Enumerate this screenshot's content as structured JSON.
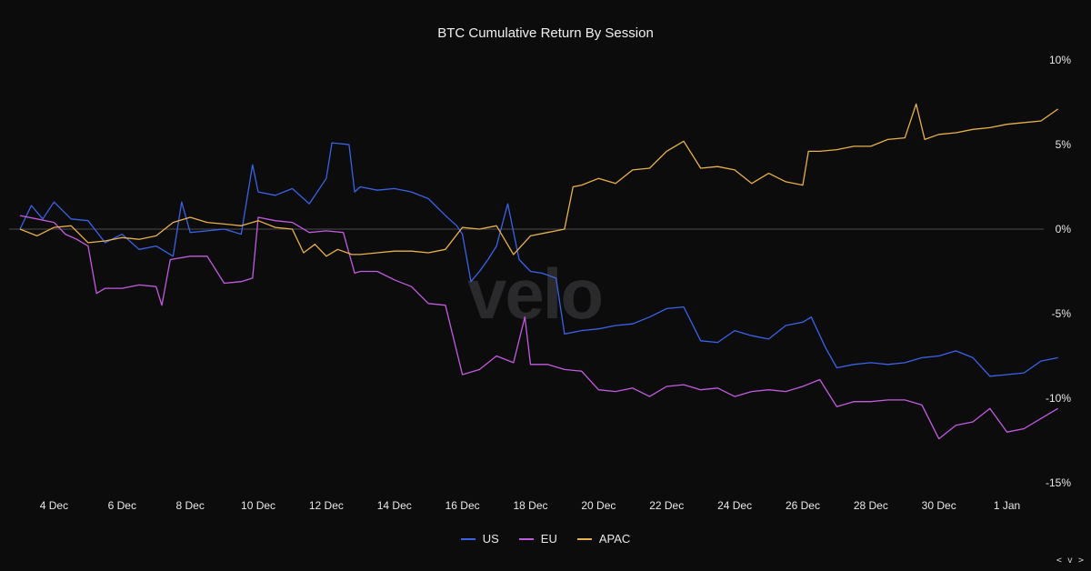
{
  "chart_data": {
    "type": "line",
    "title": "BTC Cumulative Return By Session",
    "xlabel": "",
    "ylabel": "",
    "x_start": "2023-12-03",
    "x_end": "2024-01-02",
    "ylim": [
      -15,
      10
    ],
    "y_ticks": [
      10,
      5,
      0,
      -5,
      -10,
      -15
    ],
    "y_tick_labels": [
      "10%",
      "5%",
      "0%",
      "-5%",
      "-10%",
      "-15%"
    ],
    "x_tick_labels": [
      "4 Dec",
      "6 Dec",
      "8 Dec",
      "10 Dec",
      "12 Dec",
      "14 Dec",
      "16 Dec",
      "18 Dec",
      "20 Dec",
      "22 Dec",
      "24 Dec",
      "26 Dec",
      "28 Dec",
      "30 Dec",
      "1 Jan"
    ],
    "x_tick_dates": [
      "2023-12-04",
      "2023-12-06",
      "2023-12-08",
      "2023-12-10",
      "2023-12-12",
      "2023-12-14",
      "2023-12-16",
      "2023-12-18",
      "2023-12-20",
      "2023-12-22",
      "2023-12-24",
      "2023-12-26",
      "2023-12-28",
      "2023-12-30",
      "2024-01-01"
    ],
    "zero_line": true,
    "legend_position": "bottom-center",
    "series": [
      {
        "name": "US",
        "color": "#3a63e6",
        "points": [
          [
            "2023-12-03",
            0.0
          ],
          [
            "2023-12-03 08:00",
            1.4
          ],
          [
            "2023-12-03 16:00",
            0.6
          ],
          [
            "2023-12-04",
            1.6
          ],
          [
            "2023-12-04 12:00",
            0.6
          ],
          [
            "2023-12-05",
            0.5
          ],
          [
            "2023-12-05 12:00",
            -0.8
          ],
          [
            "2023-12-06",
            -0.3
          ],
          [
            "2023-12-06 12:00",
            -1.2
          ],
          [
            "2023-12-07",
            -1.0
          ],
          [
            "2023-12-07 12:00",
            -1.6
          ],
          [
            "2023-12-07 18:00",
            1.6
          ],
          [
            "2023-12-08",
            -0.2
          ],
          [
            "2023-12-08 12:00",
            -0.1
          ],
          [
            "2023-12-09",
            0.0
          ],
          [
            "2023-12-09 12:00",
            -0.3
          ],
          [
            "2023-12-09 20:00",
            3.8
          ],
          [
            "2023-12-10",
            2.2
          ],
          [
            "2023-12-10 12:00",
            2.0
          ],
          [
            "2023-12-11",
            2.4
          ],
          [
            "2023-12-11 12:00",
            1.5
          ],
          [
            "2023-12-12",
            3.0
          ],
          [
            "2023-12-12 04:00",
            5.1
          ],
          [
            "2023-12-12 16:00",
            5.0
          ],
          [
            "2023-12-12 20:00",
            2.2
          ],
          [
            "2023-12-13",
            2.5
          ],
          [
            "2023-12-13 12:00",
            2.3
          ],
          [
            "2023-12-14",
            2.4
          ],
          [
            "2023-12-14 12:00",
            2.2
          ],
          [
            "2023-12-15",
            1.8
          ],
          [
            "2023-12-15 12:00",
            0.8
          ],
          [
            "2023-12-15 20:00",
            0.2
          ],
          [
            "2023-12-16",
            -0.3
          ],
          [
            "2023-12-16 06:00",
            -3.1
          ],
          [
            "2023-12-16 12:00",
            -2.5
          ],
          [
            "2023-12-16 18:00",
            -1.8
          ],
          [
            "2023-12-17",
            -1.0
          ],
          [
            "2023-12-17 08:00",
            1.5
          ],
          [
            "2023-12-17 16:00",
            -1.8
          ],
          [
            "2023-12-18",
            -2.5
          ],
          [
            "2023-12-18 08:00",
            -2.6
          ],
          [
            "2023-12-18 18:00",
            -2.9
          ],
          [
            "2023-12-19",
            -6.2
          ],
          [
            "2023-12-19 12:00",
            -6.0
          ],
          [
            "2023-12-20",
            -5.9
          ],
          [
            "2023-12-20 12:00",
            -5.7
          ],
          [
            "2023-12-21",
            -5.6
          ],
          [
            "2023-12-21 12:00",
            -5.2
          ],
          [
            "2023-12-22",
            -4.7
          ],
          [
            "2023-12-22 12:00",
            -4.6
          ],
          [
            "2023-12-23",
            -6.6
          ],
          [
            "2023-12-23 12:00",
            -6.7
          ],
          [
            "2023-12-24",
            -6.0
          ],
          [
            "2023-12-24 12:00",
            -6.3
          ],
          [
            "2023-12-25",
            -6.5
          ],
          [
            "2023-12-25 12:00",
            -5.7
          ],
          [
            "2023-12-26",
            -5.5
          ],
          [
            "2023-12-26 06:00",
            -5.2
          ],
          [
            "2023-12-26 16:00",
            -7.0
          ],
          [
            "2023-12-27",
            -8.2
          ],
          [
            "2023-12-27 12:00",
            -8.0
          ],
          [
            "2023-12-28",
            -7.9
          ],
          [
            "2023-12-28 12:00",
            -8.0
          ],
          [
            "2023-12-29",
            -7.9
          ],
          [
            "2023-12-29 12:00",
            -7.6
          ],
          [
            "2023-12-30",
            -7.5
          ],
          [
            "2023-12-30 12:00",
            -7.2
          ],
          [
            "2023-12-31",
            -7.6
          ],
          [
            "2023-12-31 12:00",
            -8.7
          ],
          [
            "2024-01-01",
            -8.6
          ],
          [
            "2024-01-01 12:00",
            -8.5
          ],
          [
            "2024-01-02",
            -7.8
          ],
          [
            "2024-01-02 12:00",
            -7.6
          ]
        ]
      },
      {
        "name": "EU",
        "color": "#c35be0",
        "points": [
          [
            "2023-12-03",
            0.8
          ],
          [
            "2023-12-03 12:00",
            0.6
          ],
          [
            "2023-12-04",
            0.4
          ],
          [
            "2023-12-04 08:00",
            -0.3
          ],
          [
            "2023-12-04 16:00",
            -0.6
          ],
          [
            "2023-12-05",
            -1.0
          ],
          [
            "2023-12-05 06:00",
            -3.8
          ],
          [
            "2023-12-05 12:00",
            -3.5
          ],
          [
            "2023-12-06",
            -3.5
          ],
          [
            "2023-12-06 12:00",
            -3.3
          ],
          [
            "2023-12-07",
            -3.4
          ],
          [
            "2023-12-07 04:00",
            -4.5
          ],
          [
            "2023-12-07 10:00",
            -1.8
          ],
          [
            "2023-12-08",
            -1.6
          ],
          [
            "2023-12-08 12:00",
            -1.6
          ],
          [
            "2023-12-09",
            -3.2
          ],
          [
            "2023-12-09 12:00",
            -3.1
          ],
          [
            "2023-12-09 20:00",
            -2.9
          ],
          [
            "2023-12-10",
            0.7
          ],
          [
            "2023-12-10 12:00",
            0.5
          ],
          [
            "2023-12-11",
            0.4
          ],
          [
            "2023-12-11 12:00",
            -0.2
          ],
          [
            "2023-12-12",
            -0.1
          ],
          [
            "2023-12-12 12:00",
            -0.2
          ],
          [
            "2023-12-12 20:00",
            -2.6
          ],
          [
            "2023-12-13",
            -2.5
          ],
          [
            "2023-12-13 12:00",
            -2.5
          ],
          [
            "2023-12-14",
            -3.0
          ],
          [
            "2023-12-14 12:00",
            -3.4
          ],
          [
            "2023-12-15",
            -4.4
          ],
          [
            "2023-12-15 12:00",
            -4.5
          ],
          [
            "2023-12-16",
            -8.6
          ],
          [
            "2023-12-16 12:00",
            -8.3
          ],
          [
            "2023-12-17",
            -7.5
          ],
          [
            "2023-12-17 12:00",
            -7.9
          ],
          [
            "2023-12-17 20:00",
            -5.2
          ],
          [
            "2023-12-18",
            -8.0
          ],
          [
            "2023-12-18 12:00",
            -8.0
          ],
          [
            "2023-12-19",
            -8.3
          ],
          [
            "2023-12-19 12:00",
            -8.4
          ],
          [
            "2023-12-20",
            -9.5
          ],
          [
            "2023-12-20 12:00",
            -9.6
          ],
          [
            "2023-12-21",
            -9.4
          ],
          [
            "2023-12-21 12:00",
            -9.9
          ],
          [
            "2023-12-22",
            -9.3
          ],
          [
            "2023-12-22 12:00",
            -9.2
          ],
          [
            "2023-12-23",
            -9.5
          ],
          [
            "2023-12-23 12:00",
            -9.4
          ],
          [
            "2023-12-24",
            -9.9
          ],
          [
            "2023-12-24 12:00",
            -9.6
          ],
          [
            "2023-12-25",
            -9.5
          ],
          [
            "2023-12-25 12:00",
            -9.6
          ],
          [
            "2023-12-26",
            -9.3
          ],
          [
            "2023-12-26 12:00",
            -8.9
          ],
          [
            "2023-12-27",
            -10.5
          ],
          [
            "2023-12-27 12:00",
            -10.2
          ],
          [
            "2023-12-28",
            -10.2
          ],
          [
            "2023-12-28 12:00",
            -10.1
          ],
          [
            "2023-12-29",
            -10.1
          ],
          [
            "2023-12-29 12:00",
            -10.4
          ],
          [
            "2023-12-30",
            -12.4
          ],
          [
            "2023-12-30 12:00",
            -11.6
          ],
          [
            "2023-12-31",
            -11.4
          ],
          [
            "2023-12-31 12:00",
            -10.6
          ],
          [
            "2024-01-01",
            -12.0
          ],
          [
            "2024-01-01 12:00",
            -11.8
          ],
          [
            "2024-01-02",
            -11.2
          ],
          [
            "2024-01-02 12:00",
            -10.6
          ]
        ]
      },
      {
        "name": "APAC",
        "color": "#e8b14a",
        "points": [
          [
            "2023-12-03",
            0.0
          ],
          [
            "2023-12-03 12:00",
            -0.4
          ],
          [
            "2023-12-04",
            0.1
          ],
          [
            "2023-12-04 12:00",
            0.2
          ],
          [
            "2023-12-05",
            -0.8
          ],
          [
            "2023-12-05 12:00",
            -0.7
          ],
          [
            "2023-12-06",
            -0.5
          ],
          [
            "2023-12-06 12:00",
            -0.6
          ],
          [
            "2023-12-07",
            -0.4
          ],
          [
            "2023-12-07 12:00",
            0.4
          ],
          [
            "2023-12-08",
            0.7
          ],
          [
            "2023-12-08 12:00",
            0.4
          ],
          [
            "2023-12-09",
            0.3
          ],
          [
            "2023-12-09 12:00",
            0.2
          ],
          [
            "2023-12-10",
            0.5
          ],
          [
            "2023-12-10 12:00",
            0.1
          ],
          [
            "2023-12-11",
            0.0
          ],
          [
            "2023-12-11 08:00",
            -1.4
          ],
          [
            "2023-12-11 16:00",
            -0.9
          ],
          [
            "2023-12-12",
            -1.6
          ],
          [
            "2023-12-12 08:00",
            -1.2
          ],
          [
            "2023-12-12 18:00",
            -1.5
          ],
          [
            "2023-12-13",
            -1.5
          ],
          [
            "2023-12-13 12:00",
            -1.4
          ],
          [
            "2023-12-14",
            -1.3
          ],
          [
            "2023-12-14 12:00",
            -1.3
          ],
          [
            "2023-12-15",
            -1.4
          ],
          [
            "2023-12-15 12:00",
            -1.2
          ],
          [
            "2023-12-16",
            0.1
          ],
          [
            "2023-12-16 12:00",
            0.0
          ],
          [
            "2023-12-17",
            0.2
          ],
          [
            "2023-12-17 12:00",
            -1.5
          ],
          [
            "2023-12-18",
            -0.4
          ],
          [
            "2023-12-18 12:00",
            -0.2
          ],
          [
            "2023-12-19",
            0.0
          ],
          [
            "2023-12-19 06:00",
            2.5
          ],
          [
            "2023-12-19 12:00",
            2.6
          ],
          [
            "2023-12-20",
            3.0
          ],
          [
            "2023-12-20 12:00",
            2.7
          ],
          [
            "2023-12-21",
            3.5
          ],
          [
            "2023-12-21 12:00",
            3.6
          ],
          [
            "2023-12-22",
            4.6
          ],
          [
            "2023-12-22 12:00",
            5.2
          ],
          [
            "2023-12-23",
            3.6
          ],
          [
            "2023-12-23 12:00",
            3.7
          ],
          [
            "2023-12-24",
            3.5
          ],
          [
            "2023-12-24 12:00",
            2.7
          ],
          [
            "2023-12-25",
            3.3
          ],
          [
            "2023-12-25 12:00",
            2.8
          ],
          [
            "2023-12-26",
            2.6
          ],
          [
            "2023-12-26 04:00",
            4.6
          ],
          [
            "2023-12-26 12:00",
            4.6
          ],
          [
            "2023-12-27",
            4.7
          ],
          [
            "2023-12-27 12:00",
            4.9
          ],
          [
            "2023-12-28",
            4.9
          ],
          [
            "2023-12-28 12:00",
            5.3
          ],
          [
            "2023-12-29",
            5.4
          ],
          [
            "2023-12-29 08:00",
            7.4
          ],
          [
            "2023-12-29 14:00",
            5.3
          ],
          [
            "2023-12-30",
            5.6
          ],
          [
            "2023-12-30 12:00",
            5.7
          ],
          [
            "2023-12-31",
            5.9
          ],
          [
            "2023-12-31 12:00",
            6.0
          ],
          [
            "2024-01-01",
            6.2
          ],
          [
            "2024-01-01 12:00",
            6.3
          ],
          [
            "2024-01-02",
            6.4
          ],
          [
            "2024-01-02 12:00",
            7.1
          ]
        ]
      }
    ]
  },
  "watermark": "velo",
  "corner_nav": "< v >"
}
